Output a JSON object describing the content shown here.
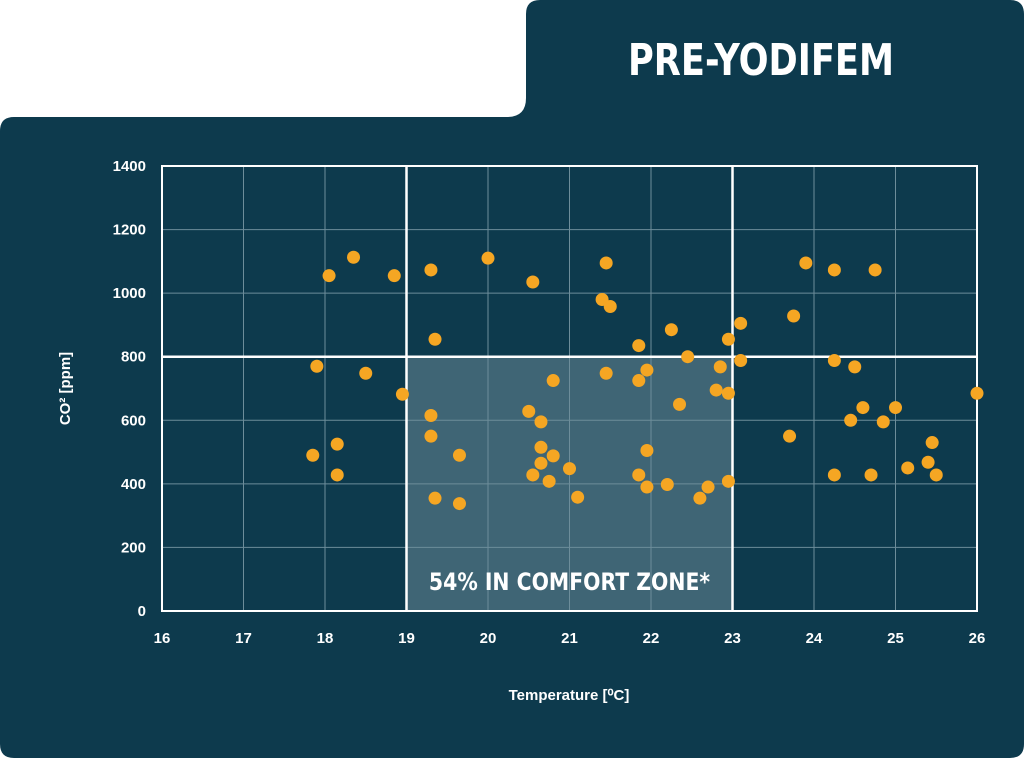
{
  "title": "PRE-YODIFEM",
  "colors": {
    "panel": "#0d3a4d",
    "point": "#f5a623",
    "grid": "#6d8d9a",
    "zone": "#3f6575",
    "white": "#ffffff"
  },
  "comfort_zone": {
    "x": [
      19,
      23
    ],
    "y": [
      0,
      800
    ],
    "label": "54% IN COMFORT ZONE*"
  },
  "chart_data": {
    "type": "scatter",
    "xlabel": "Temperature [⁰C]",
    "ylabel": "CO² [ppm]",
    "xlim": [
      16,
      26
    ],
    "ylim": [
      0,
      1400
    ],
    "xticks": [
      16,
      17,
      18,
      19,
      20,
      21,
      22,
      23,
      24,
      25,
      26
    ],
    "yticks": [
      0,
      200,
      400,
      600,
      800,
      1000,
      1200,
      1400
    ],
    "grid": true,
    "points": [
      [
        17.85,
        490
      ],
      [
        17.9,
        770
      ],
      [
        18.05,
        1055
      ],
      [
        18.15,
        525
      ],
      [
        18.15,
        428
      ],
      [
        18.35,
        1113
      ],
      [
        18.5,
        748
      ],
      [
        18.85,
        1055
      ],
      [
        18.95,
        682
      ],
      [
        19.3,
        1073
      ],
      [
        19.3,
        615
      ],
      [
        19.3,
        550
      ],
      [
        19.35,
        855
      ],
      [
        19.35,
        355
      ],
      [
        19.65,
        490
      ],
      [
        19.65,
        338
      ],
      [
        20.0,
        1110
      ],
      [
        20.5,
        628
      ],
      [
        20.55,
        1035
      ],
      [
        20.55,
        428
      ],
      [
        20.65,
        595
      ],
      [
        20.65,
        515
      ],
      [
        20.65,
        465
      ],
      [
        20.75,
        408
      ],
      [
        20.8,
        725
      ],
      [
        20.8,
        488
      ],
      [
        21.0,
        448
      ],
      [
        21.1,
        358
      ],
      [
        21.4,
        980
      ],
      [
        21.45,
        1095
      ],
      [
        21.45,
        748
      ],
      [
        21.5,
        958
      ],
      [
        21.85,
        835
      ],
      [
        21.85,
        725
      ],
      [
        21.85,
        428
      ],
      [
        21.95,
        758
      ],
      [
        21.95,
        505
      ],
      [
        21.95,
        390
      ],
      [
        22.2,
        398
      ],
      [
        22.25,
        885
      ],
      [
        22.35,
        650
      ],
      [
        22.45,
        800
      ],
      [
        22.6,
        355
      ],
      [
        22.7,
        390
      ],
      [
        22.8,
        695
      ],
      [
        22.85,
        768
      ],
      [
        22.95,
        855
      ],
      [
        22.95,
        685
      ],
      [
        22.95,
        408
      ],
      [
        23.1,
        905
      ],
      [
        23.1,
        788
      ],
      [
        23.7,
        550
      ],
      [
        23.75,
        928
      ],
      [
        23.9,
        1095
      ],
      [
        24.25,
        1073
      ],
      [
        24.25,
        788
      ],
      [
        24.25,
        428
      ],
      [
        24.45,
        600
      ],
      [
        24.5,
        768
      ],
      [
        24.6,
        640
      ],
      [
        24.7,
        428
      ],
      [
        24.75,
        1073
      ],
      [
        24.85,
        595
      ],
      [
        25.0,
        640
      ],
      [
        25.15,
        450
      ],
      [
        25.4,
        468
      ],
      [
        25.45,
        530
      ],
      [
        25.5,
        428
      ],
      [
        26.0,
        685
      ]
    ]
  }
}
